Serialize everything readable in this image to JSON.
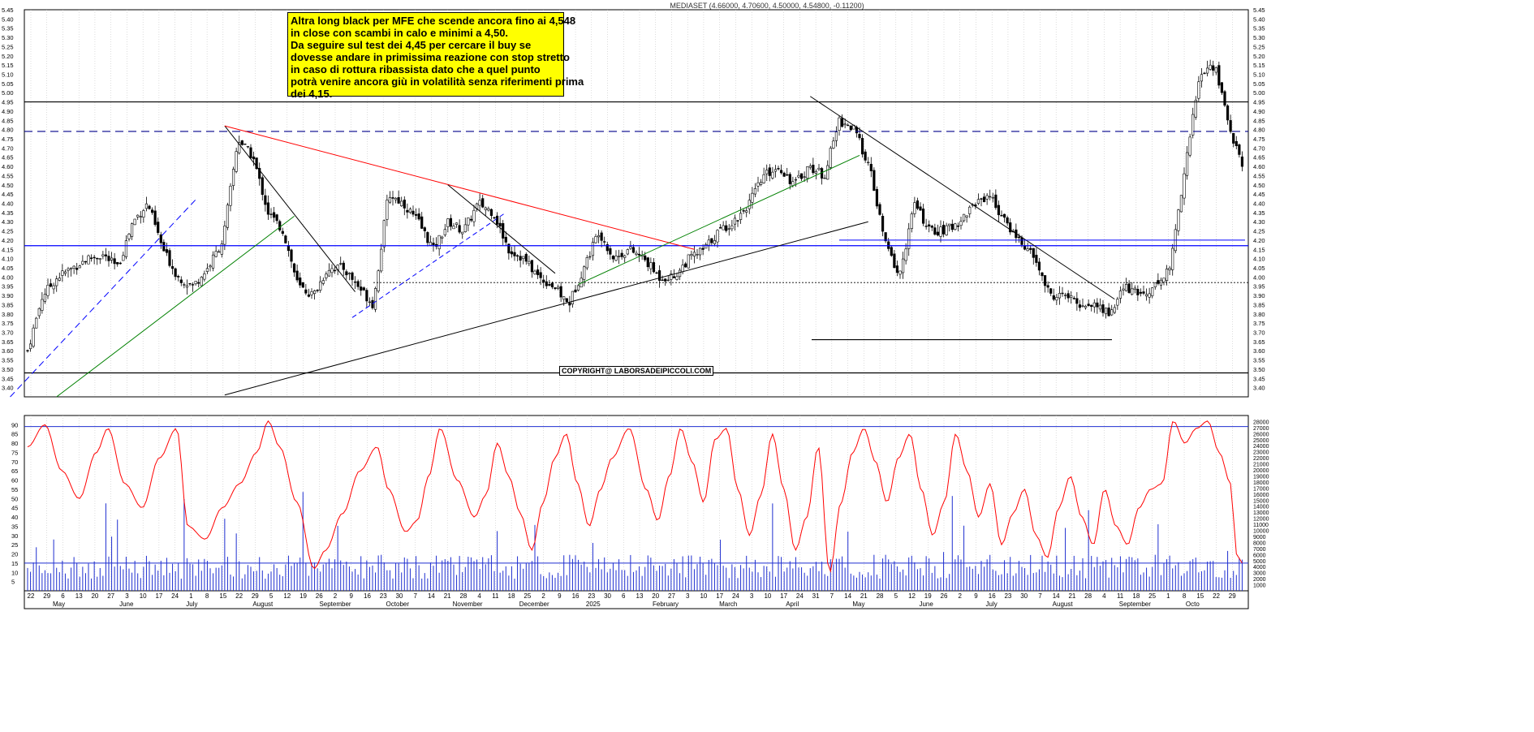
{
  "chart_data": [
    {
      "type": "candlestick",
      "title": "MEDIASET (4.66000, 4.70600, 4.50000, 4.54800, -0.11200)",
      "ylim": [
        3.35,
        5.45
      ],
      "ytick_labels": [
        "3.40",
        "3.45",
        "3.50",
        "3.55",
        "3.60",
        "3.65",
        "3.70",
        "3.75",
        "3.80",
        "3.85",
        "3.90",
        "3.95",
        "4.00",
        "4.05",
        "4.10",
        "4.15",
        "4.20",
        "4.25",
        "4.30",
        "4.35",
        "4.40",
        "4.45",
        "4.50",
        "4.55",
        "4.60",
        "4.65",
        "4.70",
        "4.75",
        "4.80",
        "4.85",
        "4.90",
        "4.95",
        "5.00",
        "5.05",
        "5.10",
        "5.15",
        "5.20",
        "5.25",
        "5.30",
        "5.35",
        "5.40",
        "5.45"
      ],
      "yticks": [
        3.4,
        3.45,
        3.5,
        3.55,
        3.6,
        3.65,
        3.7,
        3.75,
        3.8,
        3.85,
        3.9,
        3.95,
        4.0,
        4.05,
        4.1,
        4.15,
        4.2,
        4.25,
        4.3,
        4.35,
        4.4,
        4.45,
        4.5,
        4.55,
        4.6,
        4.65,
        4.7,
        4.75,
        4.8,
        4.85,
        4.9,
        4.95,
        5.0,
        5.05,
        5.1,
        5.15,
        5.2,
        5.25,
        5.3,
        5.35,
        5.4,
        5.45
      ],
      "weekly_closes": [
        3.6,
        3.9,
        4.0,
        4.05,
        4.1,
        4.12,
        4.05,
        4.3,
        4.4,
        4.15,
        4.0,
        3.95,
        4.05,
        4.2,
        4.75,
        4.65,
        4.35,
        4.25,
        3.95,
        3.9,
        4.05,
        4.05,
        3.95,
        3.85,
        4.45,
        4.4,
        4.3,
        4.15,
        4.3,
        4.25,
        4.4,
        4.35,
        4.15,
        4.1,
        4.0,
        3.95,
        3.85,
        4.05,
        4.25,
        4.1,
        4.15,
        4.1,
        4.0,
        4.0,
        4.1,
        4.15,
        4.25,
        4.3,
        4.4,
        4.55,
        4.6,
        4.5,
        4.6,
        4.55,
        4.85,
        4.8,
        4.6,
        4.2,
        4.0,
        4.4,
        4.25,
        4.25,
        4.3,
        4.4,
        4.45,
        4.3,
        4.2,
        4.1,
        3.9,
        3.9,
        3.85,
        3.85,
        3.8,
        3.95,
        3.9,
        3.95,
        4.05,
        4.6,
        5.1,
        5.15,
        4.8,
        4.55
      ],
      "horizontal_lines": [
        {
          "value": 4.95,
          "style": "solid",
          "color": "#000000"
        },
        {
          "value": 4.79,
          "style": "dashed",
          "color": "#00008b"
        },
        {
          "value": 4.17,
          "style": "solid",
          "color": "#0000ff"
        },
        {
          "value": 3.97,
          "style": "dotted",
          "color": "#000000"
        },
        {
          "value": 3.48,
          "style": "solid",
          "color": "#000000"
        },
        {
          "value": 3.66,
          "style": "solid",
          "color": "#000000"
        }
      ],
      "annotation": [
        "Altra long black per MFE che scende ancora fino ai 4,548",
        "in close con scambi in calo e minimi a 4,50.",
        "Da seguire sul test dei 4,45 per cercare il buy se",
        "dovesse andare in primissima reazione con stop stretto",
        "in caso di rottura ribassista dato che a quel punto",
        "potrà venire ancora giù in volatilità senza riferimenti prima",
        "dei 4,15."
      ],
      "copyright": "COPYRIGHT@ LABORSADEIPICCOLI.COM"
    },
    {
      "type": "line+bar",
      "left_axis_labels": [
        "5",
        "10",
        "15",
        "20",
        "25",
        "30",
        "35",
        "40",
        "45",
        "50",
        "55",
        "60",
        "65",
        "70",
        "75",
        "80",
        "85",
        "90"
      ],
      "left_axis_values": [
        5,
        10,
        15,
        20,
        25,
        30,
        35,
        40,
        45,
        50,
        55,
        60,
        65,
        70,
        75,
        80,
        85,
        90
      ],
      "right_axis_labels": [
        "1000",
        "2000",
        "3000",
        "4000",
        "5000",
        "6000",
        "7000",
        "8000",
        "9000",
        "10000",
        "11000",
        "12000",
        "13000",
        "14000",
        "15000",
        "16000",
        "17000",
        "18000",
        "19000",
        "20000",
        "21000",
        "22000",
        "23000",
        "24000",
        "25000",
        "26000",
        "27000",
        "28000"
      ],
      "right_axis_values": [
        1000,
        2000,
        3000,
        4000,
        5000,
        6000,
        7000,
        8000,
        9000,
        10000,
        11000,
        12000,
        13000,
        14000,
        15000,
        16000,
        17000,
        18000,
        19000,
        20000,
        21000,
        22000,
        23000,
        24000,
        25000,
        26000,
        27000,
        28000
      ],
      "oscillator_ylim": [
        0,
        95
      ],
      "volume_ylim": [
        0,
        29000
      ],
      "oscillator_levels": [
        89,
        15
      ],
      "oscillator_keypoints": [
        [
          0,
          78
        ],
        [
          3,
          90
        ],
        [
          6,
          65
        ],
        [
          9,
          50
        ],
        [
          12,
          75
        ],
        [
          14,
          88
        ],
        [
          17,
          58
        ],
        [
          20,
          45
        ],
        [
          23,
          72
        ],
        [
          26,
          88
        ],
        [
          28,
          35
        ],
        [
          31,
          28
        ],
        [
          34,
          45
        ],
        [
          37,
          58
        ],
        [
          40,
          75
        ],
        [
          42,
          92
        ],
        [
          44,
          78
        ],
        [
          47,
          48
        ],
        [
          50,
          12
        ],
        [
          52,
          22
        ],
        [
          55,
          42
        ],
        [
          58,
          65
        ],
        [
          61,
          78
        ],
        [
          63,
          55
        ],
        [
          66,
          32
        ],
        [
          68,
          38
        ],
        [
          70,
          62
        ],
        [
          72,
          88
        ],
        [
          75,
          60
        ],
        [
          78,
          40
        ],
        [
          80,
          52
        ],
        [
          82,
          80
        ],
        [
          84,
          62
        ],
        [
          86,
          42
        ],
        [
          88,
          22
        ],
        [
          90,
          48
        ],
        [
          92,
          72
        ],
        [
          94,
          85
        ],
        [
          96,
          58
        ],
        [
          98,
          35
        ],
        [
          100,
          55
        ],
        [
          102,
          72
        ],
        [
          105,
          88
        ],
        [
          108,
          55
        ],
        [
          110,
          38
        ],
        [
          112,
          62
        ],
        [
          114,
          88
        ],
        [
          116,
          70
        ],
        [
          118,
          48
        ],
        [
          120,
          82
        ],
        [
          122,
          88
        ],
        [
          124,
          55
        ],
        [
          126,
          30
        ],
        [
          128,
          52
        ],
        [
          130,
          85
        ],
        [
          132,
          55
        ],
        [
          134,
          22
        ],
        [
          136,
          40
        ],
        [
          138,
          78
        ],
        [
          140,
          10
        ],
        [
          142,
          48
        ],
        [
          144,
          75
        ],
        [
          146,
          88
        ],
        [
          148,
          70
        ],
        [
          150,
          48
        ],
        [
          152,
          72
        ],
        [
          154,
          85
        ],
        [
          156,
          55
        ],
        [
          158,
          30
        ],
        [
          160,
          48
        ],
        [
          162,
          85
        ],
        [
          164,
          65
        ],
        [
          166,
          40
        ],
        [
          168,
          58
        ],
        [
          170,
          25
        ],
        [
          172,
          42
        ],
        [
          174,
          55
        ],
        [
          176,
          30
        ],
        [
          178,
          18
        ],
        [
          180,
          45
        ],
        [
          182,
          62
        ],
        [
          184,
          40
        ],
        [
          186,
          25
        ],
        [
          188,
          55
        ],
        [
          190,
          35
        ],
        [
          192,
          25
        ],
        [
          194,
          45
        ],
        [
          196,
          55
        ],
        [
          198,
          58
        ],
        [
          200,
          92
        ],
        [
          202,
          80
        ],
        [
          204,
          88
        ],
        [
          206,
          92
        ],
        [
          208,
          75
        ],
        [
          210,
          58
        ],
        [
          211,
          20
        ],
        [
          212,
          15
        ]
      ]
    }
  ],
  "x_axis": {
    "day_labels": [
      "22",
      "29",
      "6",
      "13",
      "20",
      "27",
      "3",
      "10",
      "17",
      "24",
      "1",
      "8",
      "15",
      "22",
      "29",
      "5",
      "12",
      "19",
      "26",
      "2",
      "9",
      "16",
      "23",
      "30",
      "7",
      "14",
      "21",
      "28",
      "4",
      "11",
      "18",
      "25",
      "2",
      "9",
      "16",
      "23",
      "30",
      "6",
      "13",
      "20",
      "27",
      "3",
      "10",
      "17",
      "24",
      "3",
      "10",
      "17",
      "24",
      "31",
      "7",
      "14",
      "21",
      "28",
      "5",
      "12",
      "19",
      "26",
      "2",
      "9",
      "16",
      "23",
      "30",
      "7",
      "14",
      "21",
      "28",
      "4",
      "11",
      "18",
      "25",
      "1",
      "8",
      "15",
      "22",
      "29"
    ],
    "month_labels": [
      "May",
      "June",
      "July",
      "August",
      "September",
      "October",
      "November",
      "December",
      "2025",
      "February",
      "March",
      "April",
      "May",
      "June",
      "July",
      "August",
      "September",
      "Octo"
    ]
  }
}
